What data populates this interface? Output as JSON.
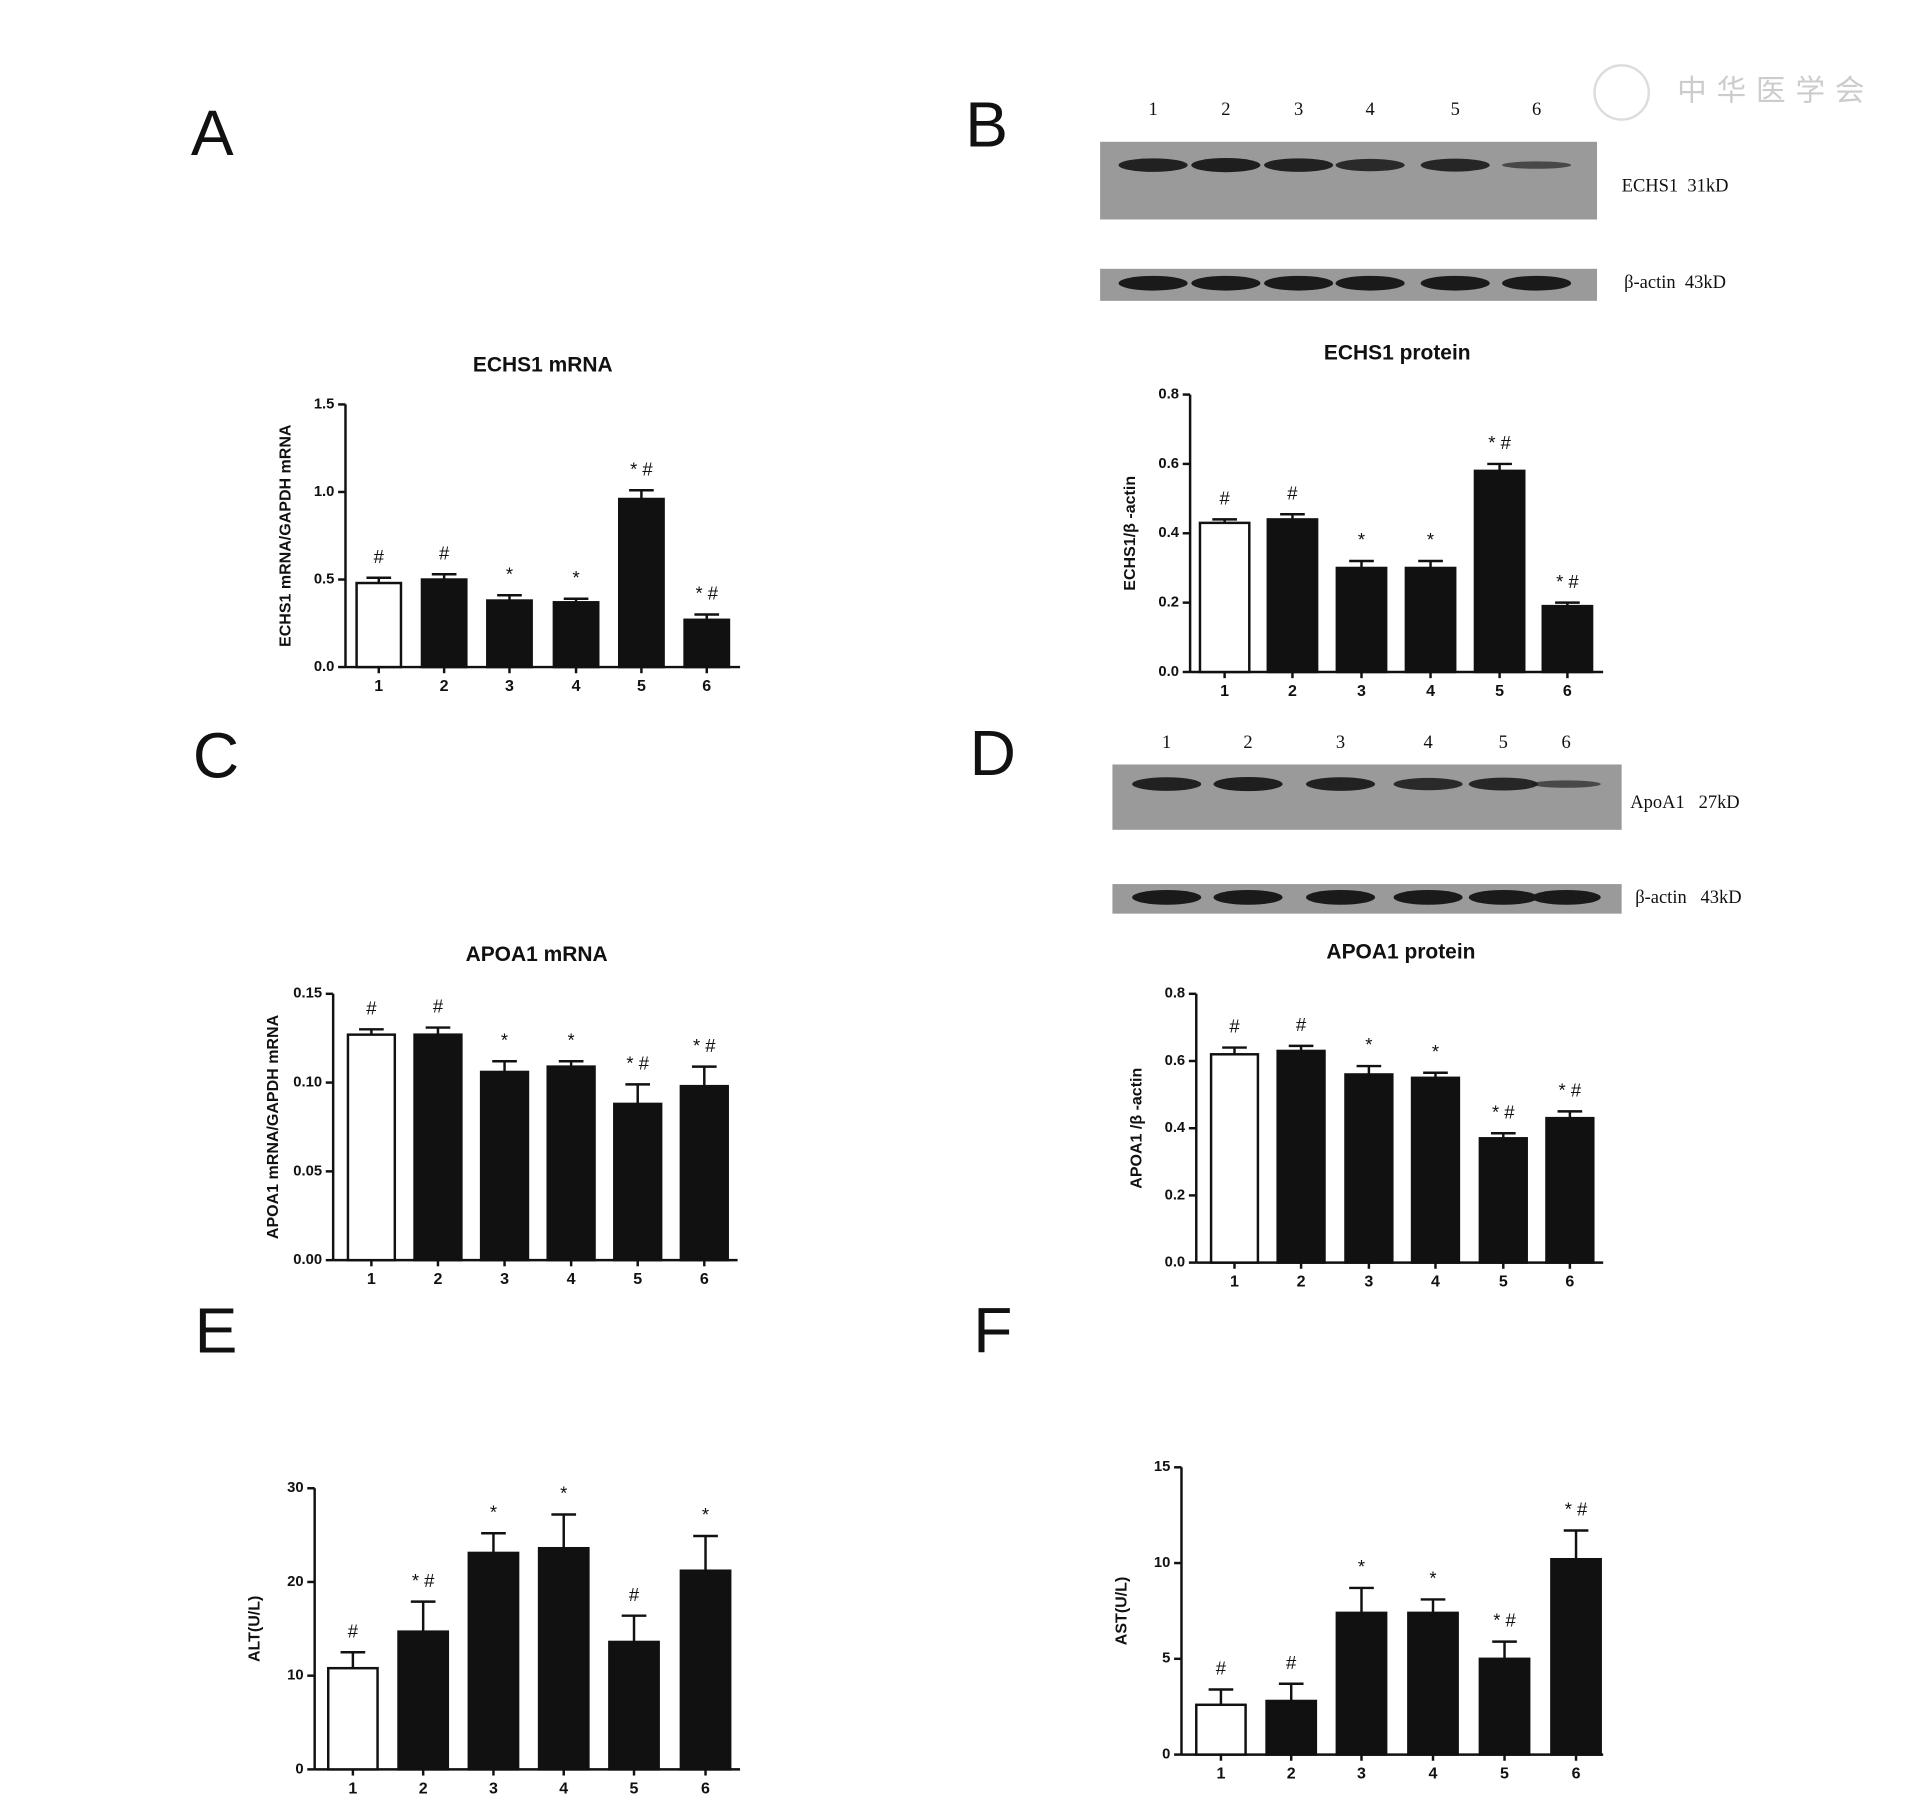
{
  "watermark": "中华医学会",
  "chart_data": [
    {
      "type": "bar",
      "panel": "A",
      "title": "ECHS1 mRNA",
      "ylabel": "ECHS1 mRNA/GAPDH mRNA",
      "categories": [
        "1",
        "2",
        "3",
        "4",
        "5",
        "6"
      ],
      "values": [
        0.48,
        0.5,
        0.38,
        0.37,
        0.96,
        0.27
      ],
      "errors": [
        0.03,
        0.03,
        0.03,
        0.02,
        0.05,
        0.03
      ],
      "annotations": [
        "#",
        "#",
        "*",
        "*",
        "* #",
        "* #"
      ],
      "colors": [
        "#ffffff",
        "#111111",
        "#111111",
        "#111111",
        "#111111",
        "#111111"
      ],
      "ylim": [
        0,
        1.5
      ],
      "yticks": [
        {
          "value": 0,
          "label": "0.0"
        },
        0.5,
        {
          "value": 1,
          "label": "1.0"
        },
        1.5
      ]
    },
    {
      "type": "bar",
      "panel": "B",
      "title": "ECHS1 protein",
      "ylabel": "ECHS1/β -actin",
      "blot": {
        "lanes": [
          "1",
          "2",
          "3",
          "4",
          "5",
          "6"
        ],
        "bands": [
          "ECHS1  31kD",
          "β-actin  43kD"
        ]
      },
      "categories": [
        "1",
        "2",
        "3",
        "4",
        "5",
        "6"
      ],
      "values": [
        0.43,
        0.44,
        0.3,
        0.3,
        0.58,
        0.19
      ],
      "errors": [
        0.01,
        0.015,
        0.02,
        0.02,
        0.02,
        0.01
      ],
      "annotations": [
        "#",
        "#",
        "*",
        "*",
        "* #",
        "* #"
      ],
      "colors": [
        "#ffffff",
        "#111111",
        "#111111",
        "#111111",
        "#111111",
        "#111111"
      ],
      "ylim": [
        0,
        0.8
      ],
      "yticks": [
        {
          "value": 0,
          "label": "0.0"
        },
        0.2,
        0.4,
        0.6,
        0.8
      ]
    },
    {
      "type": "bar",
      "panel": "C",
      "title": "APOA1 mRNA",
      "ylabel": "APOA1 mRNA/GAPDH mRNA",
      "categories": [
        "1",
        "2",
        "3",
        "4",
        "5",
        "6"
      ],
      "values": [
        0.127,
        0.127,
        0.106,
        0.109,
        0.088,
        0.098
      ],
      "errors": [
        0.003,
        0.004,
        0.006,
        0.003,
        0.011,
        0.011
      ],
      "annotations": [
        "#",
        "#",
        "*",
        "*",
        "* #",
        "* #"
      ],
      "colors": [
        "#ffffff",
        "#111111",
        "#111111",
        "#111111",
        "#111111",
        "#111111"
      ],
      "ylim": [
        0,
        0.15
      ],
      "yticks": [
        {
          "value": 0,
          "label": "0.00"
        },
        0.05,
        {
          "value": 0.1,
          "label": "0.10"
        },
        0.15
      ]
    },
    {
      "type": "bar",
      "panel": "D",
      "title": "APOA1 protein",
      "ylabel": "APOA1 /β -actin",
      "blot": {
        "lanes": [
          "1",
          "2",
          "3",
          "4",
          "5",
          "6"
        ],
        "bands": [
          "ApoA1   27kD",
          "β-actin   43kD"
        ]
      },
      "categories": [
        "1",
        "2",
        "3",
        "4",
        "5",
        "6"
      ],
      "values": [
        0.62,
        0.63,
        0.56,
        0.55,
        0.37,
        0.43
      ],
      "errors": [
        0.02,
        0.015,
        0.025,
        0.015,
        0.015,
        0.02
      ],
      "annotations": [
        "#",
        "#",
        "*",
        "*",
        "* #",
        "* #"
      ],
      "colors": [
        "#ffffff",
        "#111111",
        "#111111",
        "#111111",
        "#111111",
        "#111111"
      ],
      "ylim": [
        0,
        0.8
      ],
      "yticks": [
        {
          "value": 0,
          "label": "0.0"
        },
        0.2,
        0.4,
        0.6,
        0.8
      ]
    },
    {
      "type": "bar",
      "panel": "E",
      "ylabel": "ALT(U/L)",
      "categories": [
        "1",
        "2",
        "3",
        "4",
        "5",
        "6"
      ],
      "values": [
        10.8,
        14.7,
        23.1,
        23.6,
        13.6,
        21.2
      ],
      "errors": [
        1.7,
        3.2,
        2.1,
        3.6,
        2.8,
        3.7
      ],
      "annotations": [
        "#",
        "* #",
        "*",
        "*",
        "#",
        "*"
      ],
      "colors": [
        "#ffffff",
        "#111111",
        "#111111",
        "#111111",
        "#111111",
        "#111111"
      ],
      "ylim": [
        0,
        30
      ],
      "yticks": [
        0,
        10,
        20,
        30
      ]
    },
    {
      "type": "bar",
      "panel": "F",
      "ylabel": "AST(U/L)",
      "categories": [
        "1",
        "2",
        "3",
        "4",
        "5",
        "6"
      ],
      "values": [
        2.6,
        2.8,
        7.4,
        7.4,
        5.0,
        10.2
      ],
      "errors": [
        0.8,
        0.9,
        1.3,
        0.7,
        0.9,
        1.5
      ],
      "annotations": [
        "#",
        "#",
        "*",
        "*",
        "* #",
        "* #"
      ],
      "colors": [
        "#ffffff",
        "#111111",
        "#111111",
        "#111111",
        "#111111",
        "#111111"
      ],
      "ylim": [
        0,
        15
      ],
      "yticks": [
        0,
        5,
        10,
        15
      ]
    }
  ]
}
